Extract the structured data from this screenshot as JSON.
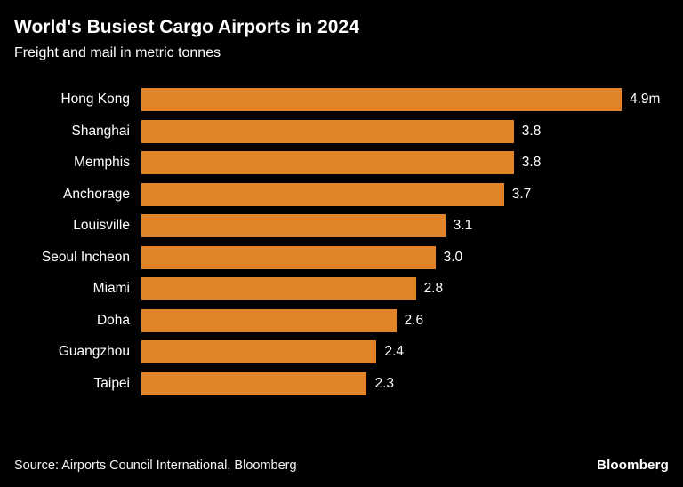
{
  "header": {
    "title": "World's Busiest Cargo Airports in 2024",
    "subtitle": "Freight and mail in metric tonnes"
  },
  "chart_data": {
    "type": "bar",
    "orientation": "horizontal",
    "title": "World's Busiest Cargo Airports in 2024",
    "subtitle": "Freight and mail in metric tonnes",
    "xlabel": "",
    "ylabel": "",
    "unit": "metric tonnes (millions)",
    "categories": [
      "Hong Kong",
      "Shanghai",
      "Memphis",
      "Anchorage",
      "Louisville",
      "Seoul Incheon",
      "Miami",
      "Doha",
      "Guangzhou",
      "Taipei"
    ],
    "values": [
      4.9,
      3.8,
      3.8,
      3.7,
      3.1,
      3.0,
      2.8,
      2.6,
      2.4,
      2.3
    ],
    "value_labels": [
      "4.9m",
      "3.8",
      "3.8",
      "3.7",
      "3.1",
      "3.0",
      "2.8",
      "2.6",
      "2.4",
      "2.3"
    ],
    "xlim": [
      0,
      4.9
    ],
    "grid": false,
    "legend": false,
    "bar_color": "#E18329"
  },
  "footer": {
    "source": "Source: Airports Council International, Bloomberg",
    "brand": "Bloomberg"
  },
  "colors": {
    "background": "#000000",
    "text": "#FFFFFF",
    "bar": "#E18329"
  }
}
